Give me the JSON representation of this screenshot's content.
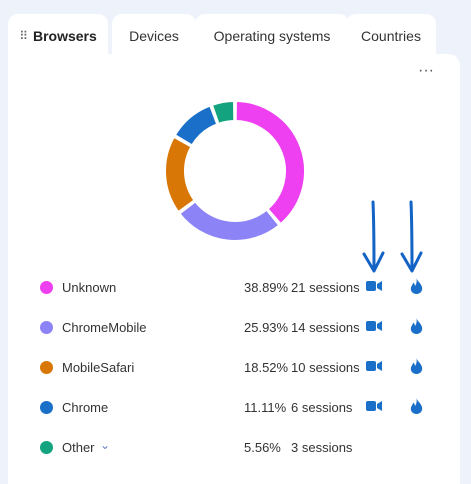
{
  "tabs": [
    {
      "label": "Browsers",
      "active": true
    },
    {
      "label": "Devices"
    },
    {
      "label": "Operating systems"
    },
    {
      "label": "Countries"
    }
  ],
  "menu_icon": "more-horizontal-icon",
  "grip_icon": "drag-handle-icon",
  "colors": {
    "unknown": "#ee3ff0",
    "chromemobile": "#8c83f7",
    "mobilesafari": "#d97706",
    "chrome": "#1a6fc9",
    "other": "#14a37f",
    "annotation_blue": "#1363c6"
  },
  "chart_data": {
    "type": "pie",
    "style": "donut",
    "labels": [
      "Unknown",
      "ChromeMobile",
      "MobileSafari",
      "Chrome",
      "Other"
    ],
    "values": [
      38.89,
      25.93,
      18.52,
      11.11,
      5.56
    ],
    "sessions": [
      21,
      14,
      10,
      6,
      3
    ]
  },
  "rows": [
    {
      "name": "Unknown",
      "pct": "38.89%",
      "sessions": "21 sessions",
      "has_actions": true
    },
    {
      "name": "ChromeMobile",
      "pct": "25.93%",
      "sessions": "14 sessions",
      "has_actions": true
    },
    {
      "name": "MobileSafari",
      "pct": "18.52%",
      "sessions": "10 sessions",
      "has_actions": true
    },
    {
      "name": "Chrome",
      "pct": "11.11%",
      "sessions": "6 sessions",
      "has_actions": true
    },
    {
      "name": "Other",
      "pct": "5.56%",
      "sessions": "3 sessions",
      "has_actions": false
    }
  ],
  "row_icons": {
    "camera": "video-camera-icon",
    "fire": "flame-icon"
  }
}
